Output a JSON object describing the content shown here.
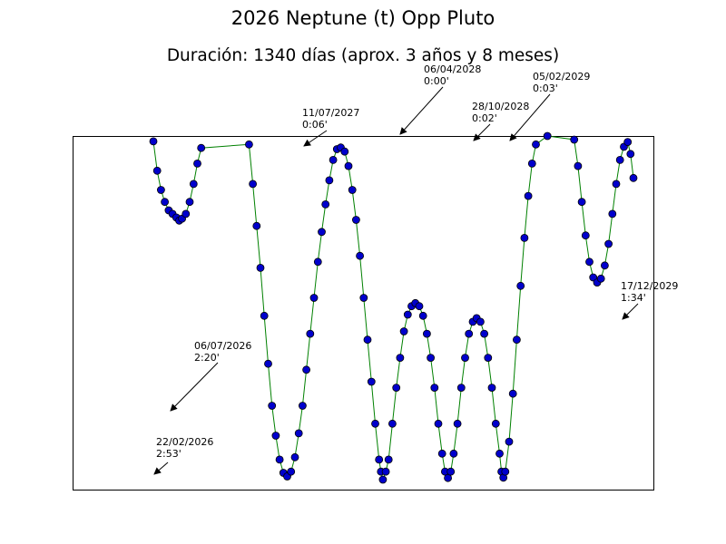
{
  "chart_data": {
    "type": "line",
    "title": "2026 Neptune (t) Opp Pluto",
    "subtitle": "Duración: 1340 días (aprox. 3 años y 8 meses)",
    "xlabel": "",
    "ylabel": "",
    "grid": false,
    "legend": "none",
    "colors": {
      "line": "#008000",
      "marker_fill": "#0000cc",
      "marker_edge": "#000000"
    },
    "series": [
      {
        "values": [
          [
            0,
            2.905
          ],
          [
            4,
            2.66
          ],
          [
            8,
            2.5
          ],
          [
            12,
            2.4
          ],
          [
            16,
            2.33
          ],
          [
            20,
            2.3
          ],
          [
            24,
            2.27
          ],
          [
            27,
            2.244
          ],
          [
            30,
            2.26
          ],
          [
            34,
            2.3
          ],
          [
            38,
            2.4
          ],
          [
            42,
            2.55
          ],
          [
            46,
            2.72
          ],
          [
            50,
            2.85
          ],
          [
            100,
            2.88
          ],
          [
            104,
            2.55
          ],
          [
            108,
            2.2
          ],
          [
            112,
            1.85
          ],
          [
            116,
            1.45
          ],
          [
            120,
            1.05
          ],
          [
            124,
            0.7
          ],
          [
            128,
            0.45
          ],
          [
            132,
            0.25
          ],
          [
            136,
            0.14
          ],
          [
            140,
            0.11
          ],
          [
            144,
            0.15
          ],
          [
            148,
            0.27
          ],
          [
            152,
            0.47
          ],
          [
            156,
            0.7
          ],
          [
            160,
            1.0
          ],
          [
            164,
            1.3
          ],
          [
            168,
            1.6
          ],
          [
            172,
            1.9
          ],
          [
            176,
            2.15
          ],
          [
            180,
            2.38
          ],
          [
            184,
            2.58
          ],
          [
            188,
            2.75
          ],
          [
            192,
            2.84
          ],
          [
            196,
            2.854
          ],
          [
            200,
            2.82
          ],
          [
            204,
            2.7
          ],
          [
            208,
            2.5
          ],
          [
            212,
            2.25
          ],
          [
            216,
            1.95
          ],
          [
            220,
            1.6
          ],
          [
            224,
            1.25
          ],
          [
            228,
            0.9
          ],
          [
            232,
            0.55
          ],
          [
            236,
            0.25
          ],
          [
            238,
            0.15
          ],
          [
            240,
            0.083
          ],
          [
            243,
            0.15
          ],
          [
            246,
            0.25
          ],
          [
            250,
            0.55
          ],
          [
            254,
            0.85
          ],
          [
            258,
            1.1
          ],
          [
            262,
            1.32
          ],
          [
            266,
            1.46
          ],
          [
            270,
            1.53
          ],
          [
            274,
            1.556
          ],
          [
            278,
            1.53
          ],
          [
            282,
            1.45
          ],
          [
            286,
            1.3
          ],
          [
            290,
            1.1
          ],
          [
            294,
            0.85
          ],
          [
            298,
            0.55
          ],
          [
            302,
            0.3
          ],
          [
            305,
            0.15
          ],
          [
            308,
            0.097
          ],
          [
            311,
            0.15
          ],
          [
            314,
            0.3
          ],
          [
            318,
            0.55
          ],
          [
            322,
            0.85
          ],
          [
            326,
            1.1
          ],
          [
            330,
            1.3
          ],
          [
            334,
            1.4
          ],
          [
            338,
            1.43
          ],
          [
            342,
            1.4
          ],
          [
            346,
            1.3
          ],
          [
            350,
            1.1
          ],
          [
            354,
            0.85
          ],
          [
            358,
            0.55
          ],
          [
            362,
            0.3
          ],
          [
            364,
            0.15
          ],
          [
            366,
            0.1
          ],
          [
            368,
            0.15
          ],
          [
            372,
            0.4
          ],
          [
            376,
            0.8
          ],
          [
            380,
            1.25
          ],
          [
            384,
            1.7
          ],
          [
            388,
            2.1
          ],
          [
            392,
            2.45
          ],
          [
            396,
            2.72
          ],
          [
            400,
            2.88
          ],
          [
            412,
            2.95
          ],
          [
            440,
            2.92
          ],
          [
            444,
            2.7
          ],
          [
            448,
            2.4
          ],
          [
            452,
            2.12
          ],
          [
            456,
            1.9
          ],
          [
            460,
            1.77
          ],
          [
            464,
            1.728
          ],
          [
            468,
            1.76
          ],
          [
            472,
            1.87
          ],
          [
            476,
            2.05
          ],
          [
            480,
            2.3
          ],
          [
            484,
            2.55
          ],
          [
            488,
            2.75
          ],
          [
            492,
            2.86
          ],
          [
            496,
            2.9
          ],
          [
            499,
            2.8
          ],
          [
            502,
            2.6
          ]
        ]
      }
    ],
    "annotations": [
      {
        "date": "22/02/2026",
        "value": "2:53'"
      },
      {
        "date": "06/07/2026",
        "value": "2:20'"
      },
      {
        "date": "11/07/2027",
        "value": "0:06'"
      },
      {
        "date": "06/04/2028",
        "value": "0:00'"
      },
      {
        "date": "28/10/2028",
        "value": "0:02'"
      },
      {
        "date": "05/02/2029",
        "value": "0:03'"
      },
      {
        "date": "17/12/2029",
        "value": "1:34'"
      }
    ]
  }
}
